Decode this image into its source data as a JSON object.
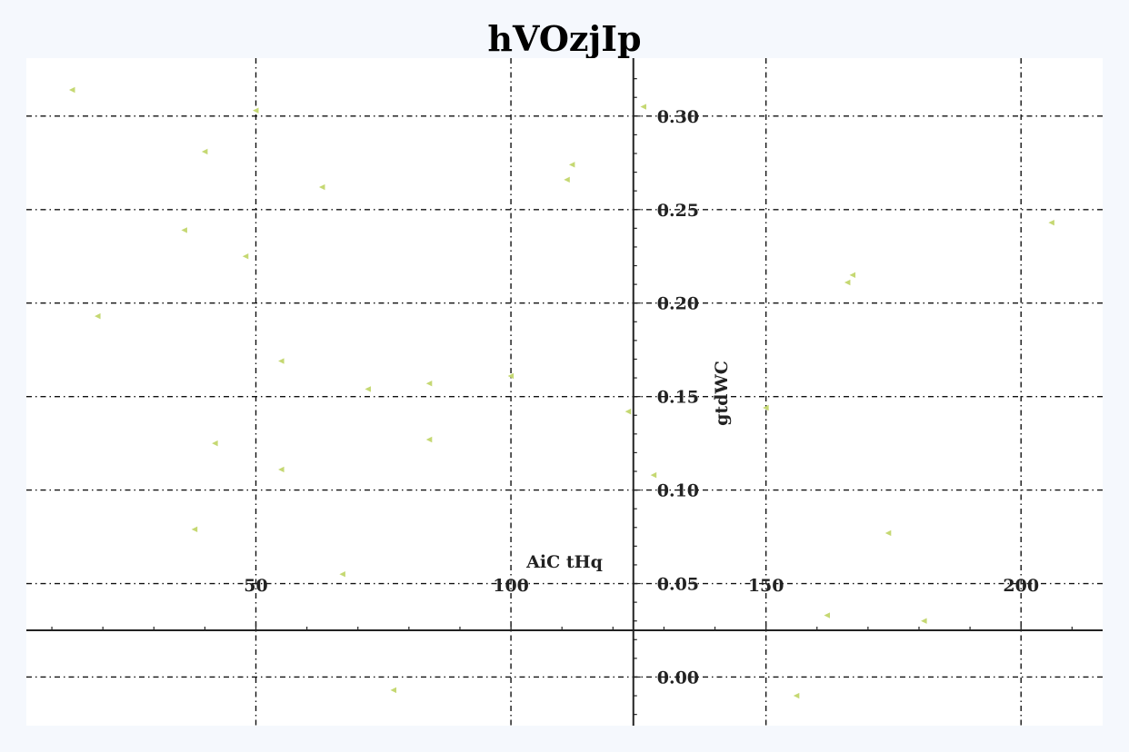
{
  "chart_data": {
    "type": "scatter",
    "title": "hVOzjIp",
    "xlabel": "AiC tHq",
    "ylabel": "gtdWC",
    "xlim": [
      5,
      216
    ],
    "ylim": [
      -0.026,
      0.331
    ],
    "x_ticks": [
      50,
      100,
      150,
      200
    ],
    "y_ticks": [
      0.0,
      0.05,
      0.1,
      0.15,
      0.2,
      0.25,
      0.3
    ],
    "x_tick_labels": [
      "50",
      "100",
      "150",
      "200"
    ],
    "y_tick_labels": [
      "0.00",
      "0.05",
      "0.10",
      "0.15",
      "0.20",
      "0.25",
      "0.30"
    ],
    "x_axis_at_y": 0.025,
    "y_axis_at_x": 124,
    "grid": true,
    "marker": "triangle-left",
    "marker_color": "#c5d872",
    "series": [
      {
        "points": [
          {
            "x": 14,
            "y": 0.314
          },
          {
            "x": 50,
            "y": 0.303
          },
          {
            "x": 126,
            "y": 0.305
          },
          {
            "x": 40,
            "y": 0.281
          },
          {
            "x": 112,
            "y": 0.274
          },
          {
            "x": 111,
            "y": 0.266
          },
          {
            "x": 63,
            "y": 0.262
          },
          {
            "x": 36,
            "y": 0.239
          },
          {
            "x": 206,
            "y": 0.243
          },
          {
            "x": 48,
            "y": 0.225
          },
          {
            "x": 167,
            "y": 0.215
          },
          {
            "x": 166,
            "y": 0.211
          },
          {
            "x": 19,
            "y": 0.193
          },
          {
            "x": 55,
            "y": 0.169
          },
          {
            "x": 100,
            "y": 0.161
          },
          {
            "x": 84,
            "y": 0.157
          },
          {
            "x": 72,
            "y": 0.154
          },
          {
            "x": 150,
            "y": 0.144
          },
          {
            "x": 123,
            "y": 0.142
          },
          {
            "x": 42,
            "y": 0.125
          },
          {
            "x": 84,
            "y": 0.127
          },
          {
            "x": 55,
            "y": 0.111
          },
          {
            "x": 128,
            "y": 0.108
          },
          {
            "x": 38,
            "y": 0.079
          },
          {
            "x": 174,
            "y": 0.077
          },
          {
            "x": 67,
            "y": 0.055
          },
          {
            "x": 162,
            "y": 0.033
          },
          {
            "x": 181,
            "y": 0.03
          },
          {
            "x": 77,
            "y": -0.007
          },
          {
            "x": 156,
            "y": -0.01
          }
        ]
      }
    ]
  }
}
